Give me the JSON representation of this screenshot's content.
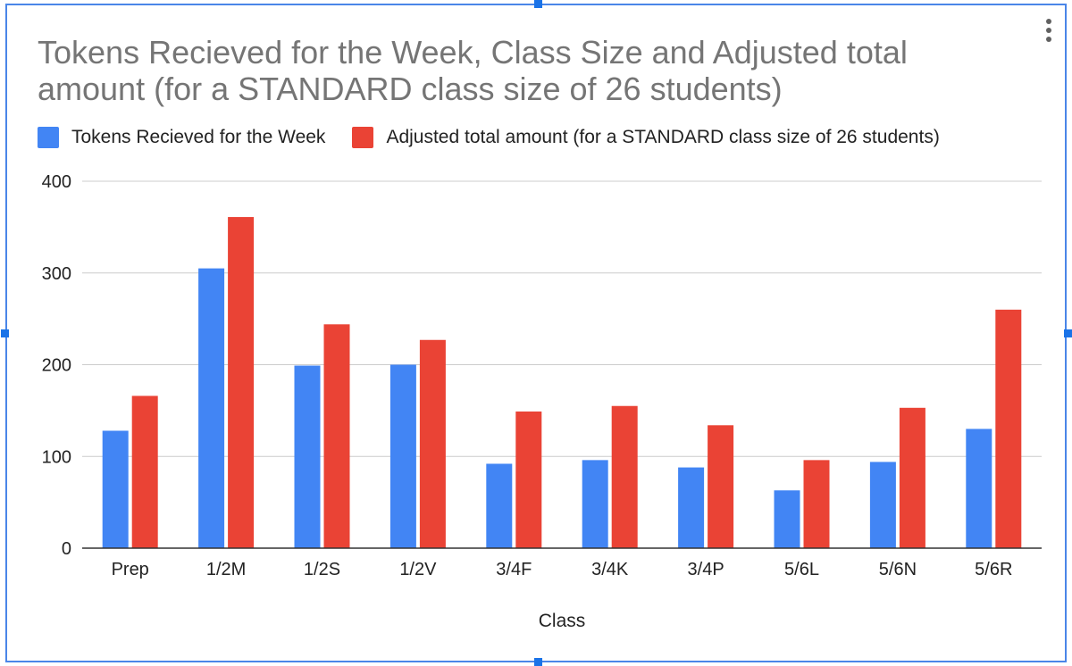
{
  "colors": {
    "series1": "#4285f4",
    "series2": "#ea4335",
    "gridline": "#cccccc",
    "axis": "#333333",
    "title": "#757575",
    "frame": "#4a86e8"
  },
  "menu": {
    "icon": "more-vert-icon"
  },
  "chart_data": {
    "type": "bar",
    "title": "Tokens Recieved for the Week, Class Size and Adjusted total amount (for a STANDARD class size of 26 students)",
    "xlabel": "Class",
    "ylabel": "",
    "ylim": [
      0,
      400
    ],
    "yticks": [
      "0",
      "100",
      "200",
      "300",
      "400"
    ],
    "grid": true,
    "legend_position": "top",
    "categories": [
      "Prep",
      "1/2M",
      "1/2S",
      "1/2V",
      "3/4F",
      "3/4K",
      "3/4P",
      "5/6L",
      "5/6N",
      "5/6R"
    ],
    "series": [
      {
        "name": "Tokens Recieved for the Week",
        "values": [
          128,
          305,
          199,
          200,
          92,
          96,
          88,
          63,
          94,
          130
        ]
      },
      {
        "name": "Adjusted total amount (for a STANDARD class size of 26 students)",
        "values": [
          166,
          361,
          244,
          227,
          149,
          155,
          134,
          96,
          153,
          260
        ]
      }
    ]
  }
}
